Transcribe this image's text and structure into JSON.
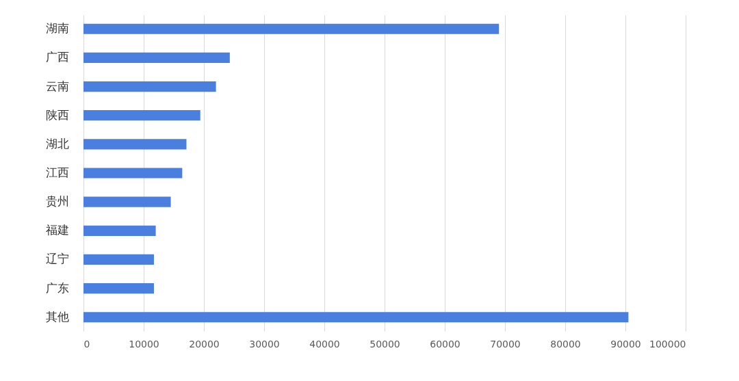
{
  "chart_data": {
    "type": "bar",
    "orientation": "horizontal",
    "categories": [
      "湖南",
      "广西",
      "云南",
      "陕西",
      "湖北",
      "江西",
      "贵州",
      "福建",
      "辽宁",
      "广东",
      "其他"
    ],
    "values": [
      69000,
      24300,
      22000,
      19400,
      17100,
      16400,
      14500,
      12000,
      11700,
      11700,
      90500
    ],
    "color": "#4a7fe0",
    "xlim": [
      0,
      100000
    ],
    "xticks": [
      0,
      10000,
      20000,
      30000,
      40000,
      50000,
      60000,
      70000,
      80000,
      90000,
      100000
    ],
    "grid": "x"
  }
}
